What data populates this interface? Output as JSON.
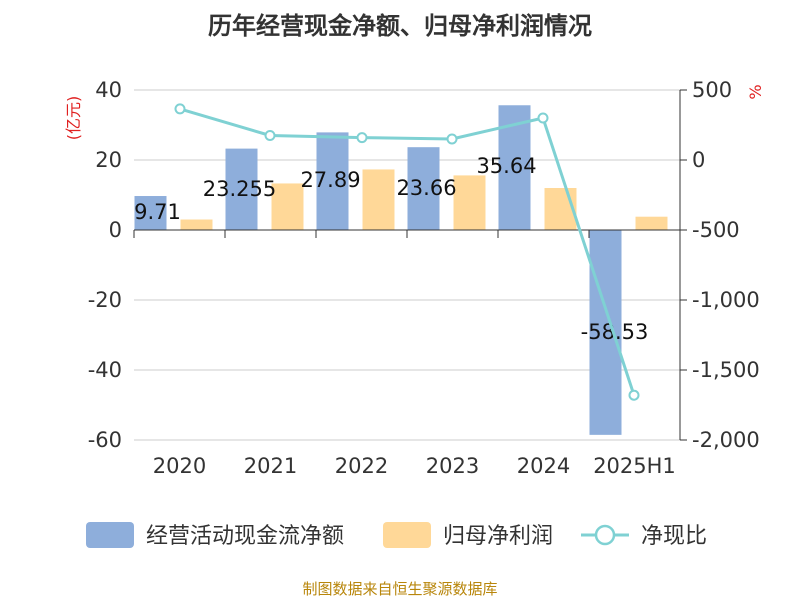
{
  "title": "历年经营现金净额、归母净利润情况",
  "source": "制图数据来自恒生聚源数据库",
  "chart_data": {
    "type": "bar",
    "categories": [
      "2020",
      "2021",
      "2022",
      "2023",
      "2024",
      "2025H1"
    ],
    "series": [
      {
        "name": "经营活动现金流净额",
        "kind": "bar",
        "axis": "left",
        "color": "#8eaedb",
        "values": [
          9.71,
          23.255,
          27.89,
          23.66,
          35.64,
          -58.53
        ],
        "labels": [
          "9.71",
          "23.255",
          "27.89",
          "23.66",
          "35.64",
          "-58.53"
        ]
      },
      {
        "name": "归母净利润",
        "kind": "bar",
        "axis": "left",
        "color": "#ffd898",
        "values": [
          3.0,
          13.3,
          17.3,
          15.6,
          12.0,
          3.8
        ]
      },
      {
        "name": "净现比",
        "kind": "line",
        "axis": "right",
        "color": "#7fd1d3",
        "values": [
          365,
          175,
          160,
          150,
          300,
          -1680
        ]
      }
    ],
    "left_axis": {
      "label": "(亿元)",
      "ylim": [
        -60,
        40
      ],
      "ticks": [
        "40",
        "20",
        "0",
        "-20",
        "-40",
        "-60"
      ],
      "tick_values": [
        40,
        20,
        0,
        -20,
        -40,
        -60
      ]
    },
    "right_axis": {
      "label": "%",
      "ylim": [
        -2000,
        500
      ],
      "ticks": [
        "500",
        "0",
        "-500",
        "-1,000",
        "-1,500",
        "-2,000"
      ],
      "tick_values": [
        500,
        0,
        -500,
        -1000,
        -1500,
        -2000
      ]
    },
    "grid": true,
    "legend_position": "bottom"
  }
}
